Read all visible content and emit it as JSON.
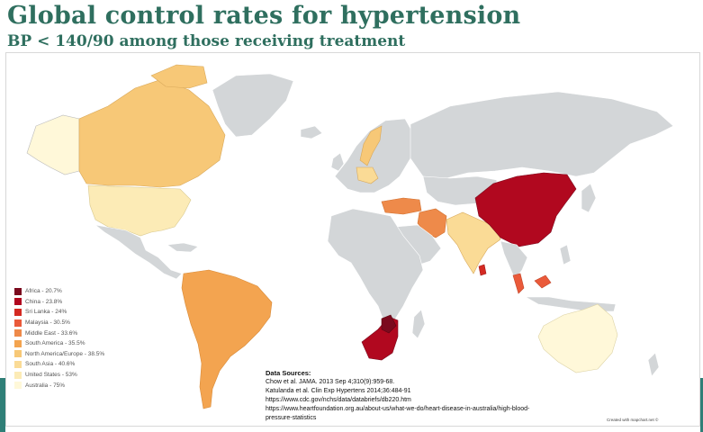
{
  "title": "Global control rates for hypertension",
  "subtitle": "BP < 140/90 among those receiving treatment",
  "legend": [
    {
      "label": "Africa - 20.7%",
      "color": "#7b0a1e"
    },
    {
      "label": "China - 23.8%",
      "color": "#b1081f"
    },
    {
      "label": "Sri Lanka - 24%",
      "color": "#d42a22"
    },
    {
      "label": "Malaysia - 30.5%",
      "color": "#ea5a3a"
    },
    {
      "label": "Middle East - 33.6%",
      "color": "#ee8a4a"
    },
    {
      "label": "South America - 35.5%",
      "color": "#f3a450"
    },
    {
      "label": "North America/Europe - 38.5%",
      "color": "#f7c877"
    },
    {
      "label": "South Asia - 40.6%",
      "color": "#fadb96"
    },
    {
      "label": "United States - 53%",
      "color": "#fcebb6"
    },
    {
      "label": "Australia - 75%",
      "color": "#fff8d9"
    }
  ],
  "colors": {
    "no_data": "#d3d6d8",
    "ocean": "#ffffff",
    "title": "#2f6f5f"
  },
  "sources": {
    "heading": "Data Sources:",
    "lines": [
      "Chow et al. JAMA. 2013 Sep 4;310(9):959-68.",
      "Katulanda et al. Clin Exp Hypertens 2014;36:484-91",
      "https://www.cdc.gov/nchs/data/databriefs/db220.htm",
      "https://www.heartfoundation.org.au/about-us/what-we-do/heart-disease-in-australia/high-blood-",
      "pressure-statistics"
    ]
  },
  "credit": "Created with mapchart.net ©"
}
